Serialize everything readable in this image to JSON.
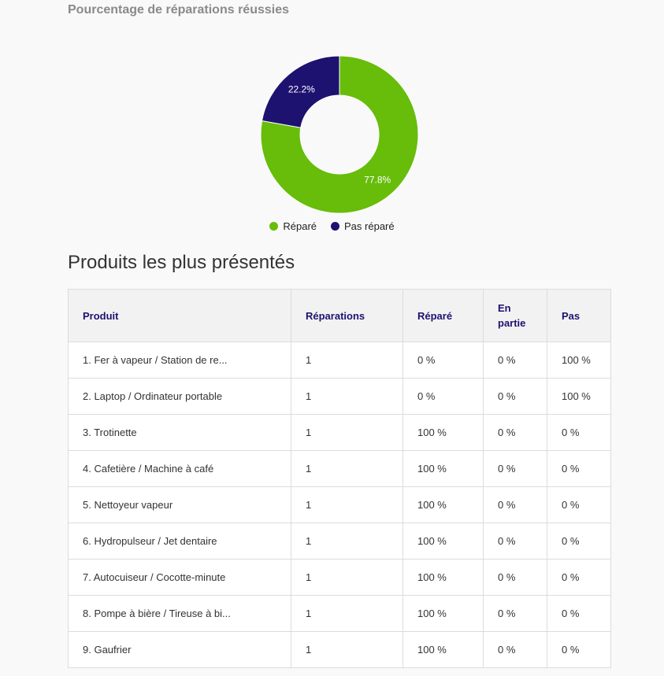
{
  "chart_section": {
    "title": "Pourcentage de réparations réussies"
  },
  "chart_data": {
    "type": "pie",
    "variant": "donut",
    "title": "Pourcentage de réparations réussies",
    "slices": [
      {
        "label": "Réparé",
        "value": 77.8,
        "display": "77.8%",
        "color": "#67bd0a"
      },
      {
        "label": "Pas réparé",
        "value": 22.2,
        "display": "22.2%",
        "color": "#1d1270"
      }
    ],
    "legend_position": "bottom"
  },
  "products_section": {
    "title": "Produits les plus présentés",
    "headers": [
      "Produit",
      "Réparations",
      "Réparé",
      "En partie",
      "Pas"
    ],
    "rows": [
      [
        "1. Fer à vapeur / Station de re...",
        "1",
        "0 %",
        "0 %",
        "100 %"
      ],
      [
        "2. Laptop / Ordinateur portable",
        "1",
        "0 %",
        "0 %",
        "100 %"
      ],
      [
        "3. Trotinette",
        "1",
        "100 %",
        "0 %",
        "0 %"
      ],
      [
        "4. Cafetière / Machine à café",
        "1",
        "100 %",
        "0 %",
        "0 %"
      ],
      [
        "5. Nettoyeur vapeur",
        "1",
        "100 %",
        "0 %",
        "0 %"
      ],
      [
        "6. Hydropulseur / Jet dentaire",
        "1",
        "100 %",
        "0 %",
        "0 %"
      ],
      [
        "7. Autocuiseur / Cocotte-minute",
        "1",
        "100 %",
        "0 %",
        "0 %"
      ],
      [
        "8. Pompe à bière / Tireuse à bi...",
        "1",
        "100 %",
        "0 %",
        "0 %"
      ],
      [
        "9. Gaufrier",
        "1",
        "100 %",
        "0 %",
        "0 %"
      ]
    ]
  }
}
